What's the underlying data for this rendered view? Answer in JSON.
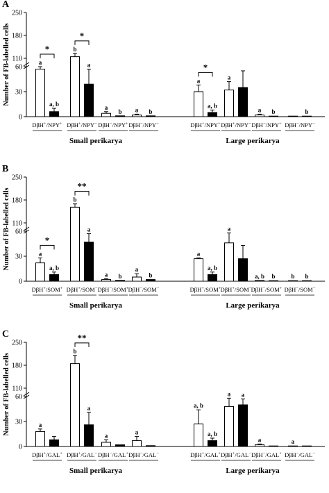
{
  "figure": {
    "ylabel": "Number of FB-labelled cells",
    "groups": [
      "Small perikarya",
      "Large perikarya"
    ]
  },
  "chart_data": [
    {
      "type": "bar",
      "panel": "A",
      "ylabel": "Number of FB-labelled cells",
      "yticks": [
        0,
        30,
        60,
        110,
        180,
        250
      ],
      "scale": "broken",
      "groups": [
        "Small perikarya",
        "Large perikarya"
      ],
      "categories": [
        "DβH+/NPY+",
        "DβH+/NPY−",
        "DβH−/NPY+",
        "DβH−/NPY−",
        "DβH+/NPY+",
        "DβH+/NPY−",
        "DβH−/NPY+",
        "DβH−/NPY−"
      ],
      "category_labels": [
        {
          "a": "DβH",
          "s1": "+",
          "b": "/NPY",
          "s2": "+"
        },
        {
          "a": "DβH",
          "s1": "+",
          "b": "/NPY",
          "s2": "−"
        },
        {
          "a": "DβH",
          "s1": "−",
          "b": "/NPY",
          "s2": "+"
        },
        {
          "a": "DβH",
          "s1": "−",
          "b": "/NPY",
          "s2": "−"
        },
        {
          "a": "DβH",
          "s1": "+",
          "b": "/NPY",
          "s2": "+"
        },
        {
          "a": "DβH",
          "s1": "+",
          "b": "/NPY",
          "s2": "−"
        },
        {
          "a": "DβH",
          "s1": "−",
          "b": "/NPY",
          "s2": "+"
        },
        {
          "a": "DβH",
          "s1": "−",
          "b": "/NPY",
          "s2": "−"
        }
      ],
      "series": [
        {
          "color": "#ffffff",
          "values": [
            57,
            115,
            4,
            2,
            30,
            32,
            2,
            0
          ],
          "errors": [
            3,
            10,
            2,
            1,
            8,
            10,
            1,
            0
          ],
          "letters": [
            "a",
            "b",
            "a",
            "a",
            "a",
            "a",
            "a",
            ""
          ]
        },
        {
          "color": "#000000",
          "values": [
            6,
            39,
            1,
            1,
            5,
            35,
            0.5,
            0.5
          ],
          "errors": [
            4,
            18,
            0,
            0,
            3,
            20,
            0,
            0
          ],
          "letters": [
            "a, b",
            "a",
            "b",
            "b",
            "a, b",
            "",
            "b",
            "b"
          ]
        }
      ],
      "significance": [
        {
          "category": 0,
          "label": "*"
        },
        {
          "category": 1,
          "label": "*"
        },
        {
          "category": 4,
          "label": "*"
        }
      ]
    },
    {
      "type": "bar",
      "panel": "B",
      "ylabel": "Number of FB-labelled cells",
      "yticks": [
        0,
        30,
        60,
        110,
        180,
        250
      ],
      "scale": "broken",
      "groups": [
        "Small perikarya",
        "Large perikarya"
      ],
      "categories": [
        "DβH+/SOM+",
        "DβH+/SOM−",
        "DβH−/SOM+",
        "DβH−/SOM−",
        "DβH+/SOM+",
        "DβH+/SOM−",
        "DβH−/SOM+",
        "DβH−/SOM−"
      ],
      "category_labels": [
        {
          "a": "DβH",
          "s1": "+",
          "b": "/SOM",
          "s2": "+"
        },
        {
          "a": "DβH",
          "s1": "+",
          "b": "/SOM",
          "s2": "−"
        },
        {
          "a": "DβH",
          "s1": "−",
          "b": "/SOM",
          "s2": "+"
        },
        {
          "a": "DβH",
          "s1": "−",
          "b": "/SOM",
          "s2": "−"
        },
        {
          "a": "DβH",
          "s1": "+",
          "b": "/SOM",
          "s2": "+"
        },
        {
          "a": "DβH",
          "s1": "+",
          "b": "/SOM",
          "s2": "−"
        },
        {
          "a": "DβH",
          "s1": "−",
          "b": "/SOM",
          "s2": "+"
        },
        {
          "a": "DβH",
          "s1": "−",
          "b": "/SOM",
          "s2": "−"
        }
      ],
      "series": [
        {
          "color": "#ffffff",
          "values": [
            22,
            158,
            2,
            5,
            27,
            46,
            1,
            0.5
          ],
          "errors": [
            6,
            10,
            1,
            4,
            1,
            12,
            0,
            0
          ],
          "letters": [
            "a",
            "b",
            "a",
            "a",
            "a",
            "a",
            "a, b",
            "b"
          ]
        },
        {
          "color": "#000000",
          "values": [
            8,
            47,
            1,
            2,
            8,
            27,
            0.5,
            0.5
          ],
          "errors": [
            3,
            10,
            0,
            0,
            3,
            16,
            0,
            0
          ],
          "letters": [
            "a, b",
            "a",
            "b",
            "b",
            "a, b",
            "",
            "b",
            "b"
          ]
        }
      ],
      "significance": [
        {
          "category": 0,
          "label": "*"
        },
        {
          "category": 1,
          "label": "**"
        }
      ]
    },
    {
      "type": "bar",
      "panel": "C",
      "ylabel": "Number of FB-labelled cells",
      "yticks": [
        0,
        30,
        60,
        110,
        180,
        250
      ],
      "scale": "broken",
      "groups": [
        "Small perikarya",
        "Large perikarya"
      ],
      "categories": [
        "DβH+/GAL+",
        "DβH+/GAL−",
        "DβH−/GAL+",
        "DβH−/GAL−",
        "DβH+/GAL+",
        "DβH+/GAL−",
        "DβH−/GAL+",
        "DβH−/GAL−"
      ],
      "category_labels": [
        {
          "a": "DβH",
          "s1": "+",
          "b": "/GAL",
          "s2": "+"
        },
        {
          "a": "DβH",
          "s1": "+",
          "b": "/GAL",
          "s2": "−"
        },
        {
          "a": "DβH",
          "s1": "−",
          "b": "/GAL",
          "s2": "+"
        },
        {
          "a": "DβH",
          "s1": "−",
          "b": "/GAL",
          "s2": "−"
        },
        {
          "a": "DβH",
          "s1": "+",
          "b": "/GAL",
          "s2": "+"
        },
        {
          "a": "DβH",
          "s1": "+",
          "b": "/GAL",
          "s2": "−"
        },
        {
          "a": "DβH",
          "s1": "−",
          "b": "/GAL",
          "s2": "+"
        },
        {
          "a": "DβH",
          "s1": "−",
          "b": "/GAL",
          "s2": "−"
        }
      ],
      "series": [
        {
          "color": "#ffffff",
          "values": [
            18,
            185,
            5,
            7,
            27,
            48,
            2,
            0.5
          ],
          "errors": [
            3,
            25,
            3,
            5,
            17,
            10,
            1,
            0
          ],
          "letters": [
            "a",
            "b",
            "a",
            "a",
            "a, b",
            "a",
            "a",
            "a"
          ]
        },
        {
          "color": "#000000",
          "values": [
            8,
            26,
            2,
            1,
            7,
            50,
            0.5,
            0.5
          ],
          "errors": [
            4,
            15,
            0,
            0,
            3,
            7,
            0,
            0
          ],
          "letters": [
            "",
            "a",
            "",
            "",
            "a, b",
            "a",
            "",
            ""
          ]
        }
      ],
      "significance": [
        {
          "category": 1,
          "label": "**"
        }
      ]
    }
  ]
}
